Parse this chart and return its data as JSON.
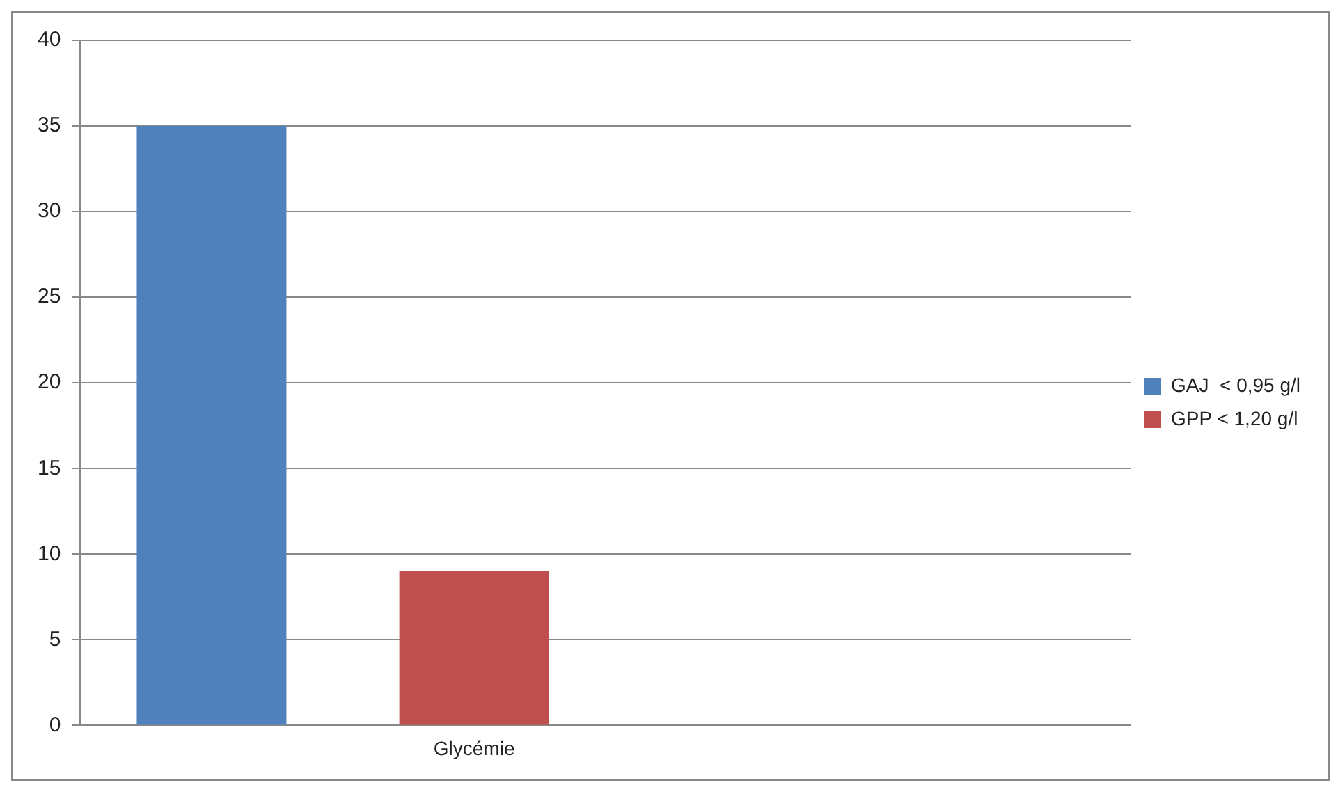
{
  "chart_data": {
    "type": "bar",
    "categories": [
      null,
      "Glycémie",
      null,
      null
    ],
    "series": [
      {
        "name": "GAJ  < 0,95 g/l",
        "color": "#4f81bd",
        "values": [
          35,
          null,
          null,
          null
        ]
      },
      {
        "name": "GPP < 1,20 g/l",
        "color": "#c0504d",
        "values": [
          null,
          9,
          null,
          null
        ]
      }
    ],
    "ylim": [
      0,
      40
    ],
    "yticks": [
      0,
      5,
      10,
      15,
      20,
      25,
      30,
      35,
      40
    ],
    "grid": "y",
    "legend": "right"
  }
}
